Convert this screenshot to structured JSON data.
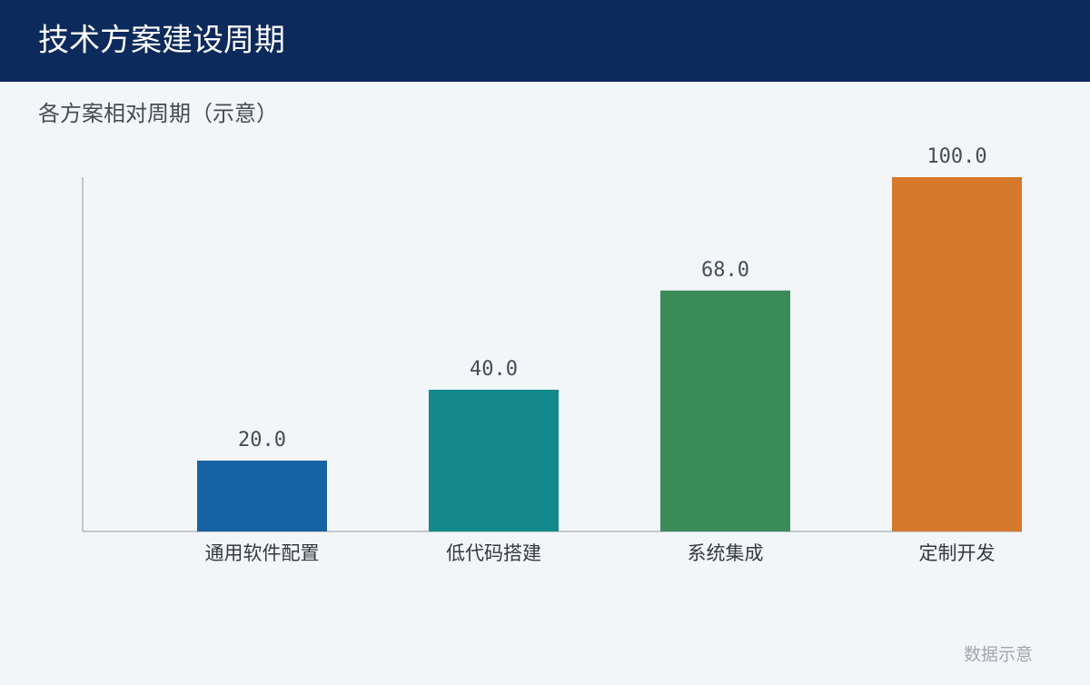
{
  "chart_data": {
    "type": "bar",
    "title": "技术方案建设周期",
    "subtitle": "各方案相对周期（示意）",
    "categories": [
      "通用软件配置",
      "低代码搭建",
      "系统集成",
      "定制开发"
    ],
    "values": [
      20,
      40,
      68,
      100
    ],
    "value_labels": [
      "20.0",
      "40.0",
      "68.0",
      "100.0"
    ],
    "colors": [
      "#1762a3",
      "#128a8c",
      "#3a8b58",
      "#d6792a"
    ],
    "ylim": [
      0,
      100
    ],
    "grid": false,
    "note": "数据示意"
  }
}
